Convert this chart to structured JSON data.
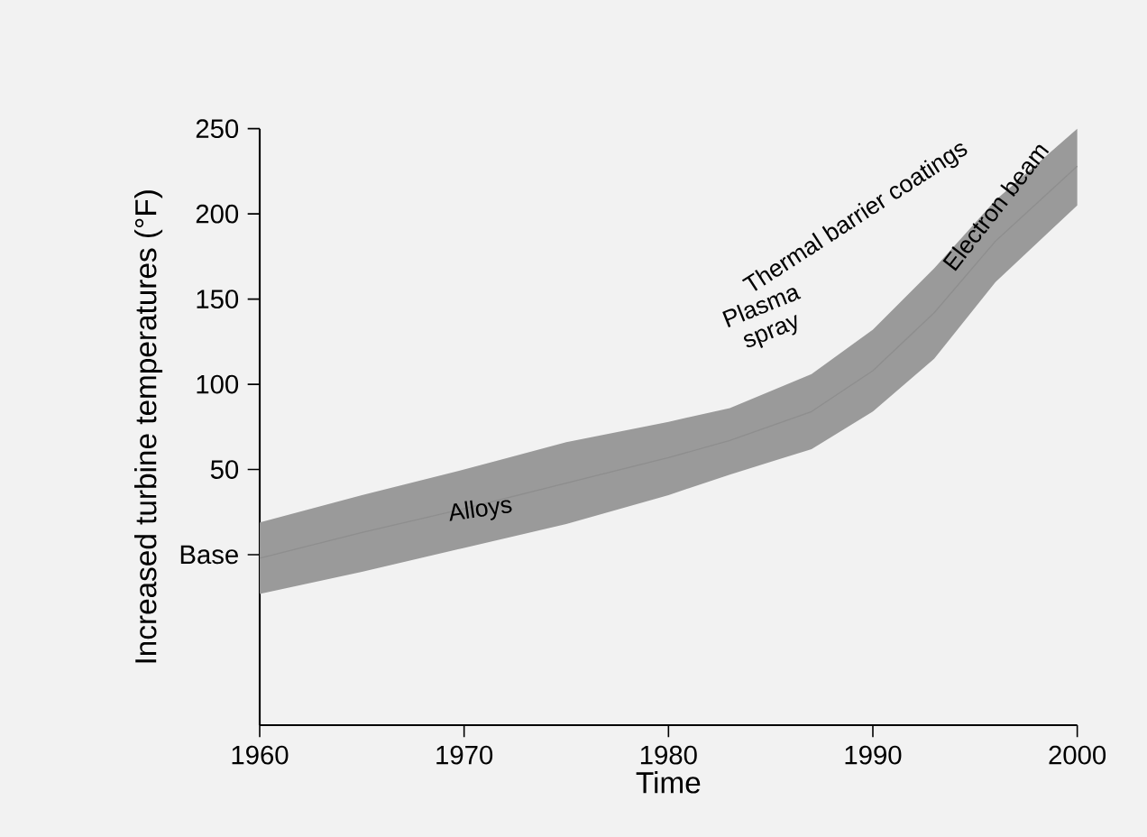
{
  "chart_data": {
    "type": "line",
    "xlabel": "Time",
    "ylabel": "Increased turbine temperatures (°F)",
    "xlim": [
      1960,
      2000
    ],
    "ylim": [
      -100,
      250
    ],
    "xticks": [
      1960,
      1970,
      1980,
      1990,
      2000
    ],
    "yticks": [
      {
        "value": 0,
        "label": "Base"
      },
      50,
      100,
      150,
      200,
      250
    ],
    "series": [
      {
        "color": "#9a9a9a",
        "x": [
          1960,
          1965,
          1970,
          1975,
          1980,
          1983,
          1987,
          1990,
          1993,
          1996,
          2000
        ],
        "lower": [
          -23,
          -10,
          4,
          18,
          35,
          47,
          62,
          84,
          115,
          160,
          205
        ],
        "values": [
          -2,
          13,
          27,
          42,
          57,
          67,
          84,
          108,
          142,
          184,
          228
        ],
        "upper": [
          19,
          35,
          50,
          66,
          78,
          86,
          106,
          132,
          168,
          208,
          250
        ]
      }
    ],
    "annotations": [
      "Alloys",
      "Plasma spray",
      "Thermal barrier coatings",
      "Electron beam"
    ],
    "grid": false
  }
}
